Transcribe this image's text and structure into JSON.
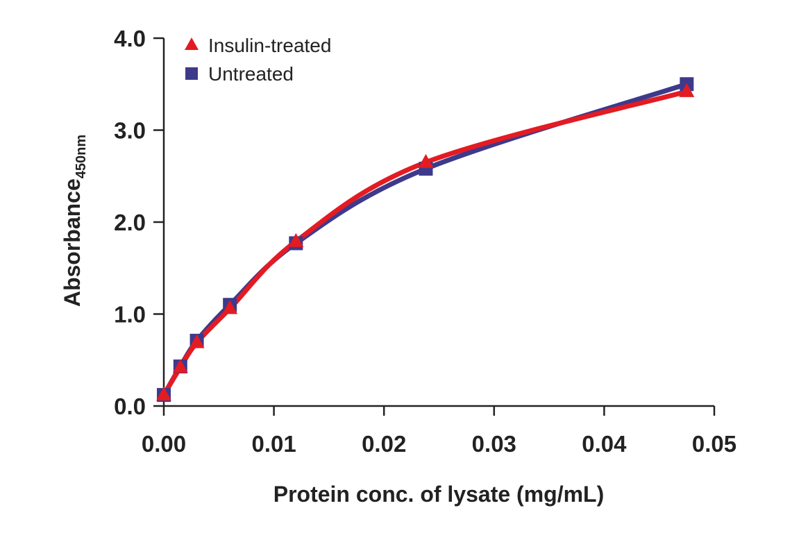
{
  "chart_data": {
    "type": "scatter",
    "title": "",
    "xlabel": "Protein conc. of lysate (mg/mL)",
    "ylabel": "Absorbance",
    "ylabel_subscript": "450nm",
    "xlim": [
      0,
      0.05
    ],
    "ylim": [
      0,
      4.0
    ],
    "xticks": [
      "0.00",
      "0.01",
      "0.02",
      "0.03",
      "0.04",
      "0.05"
    ],
    "xtick_values": [
      0,
      0.01,
      0.02,
      0.03,
      0.04,
      0.05
    ],
    "yticks": [
      "0.0",
      "1.0",
      "2.0",
      "3.0",
      "4.0"
    ],
    "ytick_values": [
      0,
      1,
      2,
      3,
      4
    ],
    "grid": false,
    "legend_position": "top-left",
    "fit": "saturation curve through points",
    "series": [
      {
        "name": "Untreated",
        "marker": "square",
        "color": "#3d3a8c",
        "x": [
          0.0,
          0.0015,
          0.003,
          0.006,
          0.012,
          0.0238,
          0.0475
        ],
        "y": [
          0.12,
          0.43,
          0.71,
          1.1,
          1.77,
          2.58,
          3.5
        ]
      },
      {
        "name": "Insulin-treated",
        "marker": "triangle",
        "color": "#e31b23",
        "x": [
          0.0,
          0.0015,
          0.003,
          0.006,
          0.012,
          0.0238,
          0.0475
        ],
        "y": [
          0.12,
          0.42,
          0.69,
          1.06,
          1.79,
          2.65,
          3.42
        ]
      }
    ],
    "legend": [
      {
        "label": "Insulin-treated",
        "marker": "triangle",
        "color": "#e31b23"
      },
      {
        "label": "Untreated",
        "marker": "square",
        "color": "#3d3a8c"
      }
    ]
  }
}
